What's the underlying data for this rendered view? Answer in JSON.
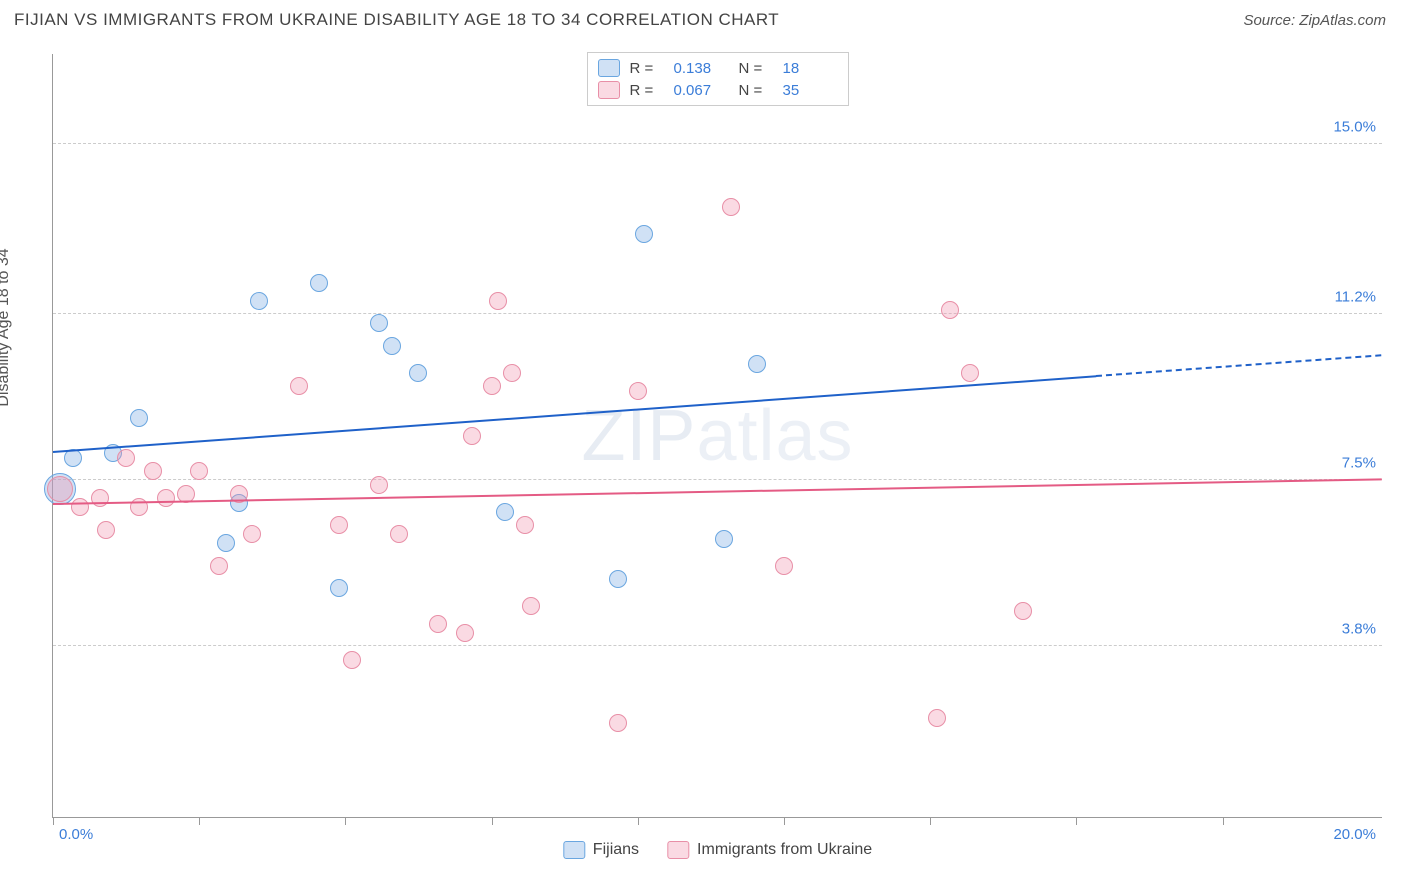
{
  "header": {
    "title": "FIJIAN VS IMMIGRANTS FROM UKRAINE DISABILITY AGE 18 TO 34 CORRELATION CHART",
    "source": "Source: ZipAtlas.com"
  },
  "chart": {
    "type": "scatter",
    "ylabel": "Disability Age 18 to 34",
    "watermark": {
      "bold": "ZIP",
      "thin": "atlas"
    },
    "xlim": [
      0,
      20
    ],
    "ylim": [
      0,
      17
    ],
    "x_ticks_pct": [
      0,
      11,
      22,
      33,
      44,
      55,
      66,
      77,
      88
    ],
    "x_axis_labels": {
      "min": "0.0%",
      "max": "20.0%"
    },
    "y_gridlines": [
      {
        "value": 3.8,
        "label": "3.8%"
      },
      {
        "value": 7.5,
        "label": "7.5%"
      },
      {
        "value": 11.2,
        "label": "11.2%"
      },
      {
        "value": 15.0,
        "label": "15.0%"
      }
    ],
    "series": [
      {
        "name": "Fijians",
        "fill": "rgba(120,170,225,0.35)",
        "stroke": "#6aa6e0",
        "trend_color": "#1f61c9",
        "R": "0.138",
        "N": "18",
        "trend": {
          "x1": 0,
          "y1": 8.15,
          "x2": 20,
          "y2": 10.3,
          "solid_until_x": 15.7
        },
        "points": [
          {
            "x": 0.1,
            "y": 7.3,
            "r": 16
          },
          {
            "x": 0.3,
            "y": 8.0,
            "r": 9
          },
          {
            "x": 0.9,
            "y": 8.1,
            "r": 9
          },
          {
            "x": 1.3,
            "y": 8.9,
            "r": 9
          },
          {
            "x": 2.6,
            "y": 6.1,
            "r": 9
          },
          {
            "x": 2.8,
            "y": 7.0,
            "r": 9
          },
          {
            "x": 3.1,
            "y": 11.5,
            "r": 9
          },
          {
            "x": 4.0,
            "y": 11.9,
            "r": 9
          },
          {
            "x": 4.3,
            "y": 5.1,
            "r": 9
          },
          {
            "x": 4.9,
            "y": 11.0,
            "r": 9
          },
          {
            "x": 5.1,
            "y": 10.5,
            "r": 9
          },
          {
            "x": 5.5,
            "y": 9.9,
            "r": 9
          },
          {
            "x": 6.8,
            "y": 6.8,
            "r": 9
          },
          {
            "x": 8.5,
            "y": 5.3,
            "r": 9
          },
          {
            "x": 8.9,
            "y": 13.0,
            "r": 9
          },
          {
            "x": 10.1,
            "y": 6.2,
            "r": 9
          },
          {
            "x": 10.6,
            "y": 10.1,
            "r": 9
          }
        ]
      },
      {
        "name": "Immigrants from Ukraine",
        "fill": "rgba(240,150,175,0.35)",
        "stroke": "#e88fa7",
        "trend_color": "#e45b84",
        "R": "0.067",
        "N": "35",
        "trend": {
          "x1": 0,
          "y1": 7.0,
          "x2": 20,
          "y2": 7.55,
          "solid_until_x": 20
        },
        "points": [
          {
            "x": 0.1,
            "y": 7.3,
            "r": 13
          },
          {
            "x": 0.4,
            "y": 6.9,
            "r": 9
          },
          {
            "x": 0.7,
            "y": 7.1,
            "r": 9
          },
          {
            "x": 0.8,
            "y": 6.4,
            "r": 9
          },
          {
            "x": 1.1,
            "y": 8.0,
            "r": 9
          },
          {
            "x": 1.3,
            "y": 6.9,
            "r": 9
          },
          {
            "x": 1.5,
            "y": 7.7,
            "r": 9
          },
          {
            "x": 1.7,
            "y": 7.1,
            "r": 9
          },
          {
            "x": 2.0,
            "y": 7.2,
            "r": 9
          },
          {
            "x": 2.2,
            "y": 7.7,
            "r": 9
          },
          {
            "x": 2.5,
            "y": 5.6,
            "r": 9
          },
          {
            "x": 2.8,
            "y": 7.2,
            "r": 9
          },
          {
            "x": 3.0,
            "y": 6.3,
            "r": 9
          },
          {
            "x": 3.7,
            "y": 9.6,
            "r": 9
          },
          {
            "x": 4.3,
            "y": 6.5,
            "r": 9
          },
          {
            "x": 4.5,
            "y": 3.5,
            "r": 9
          },
          {
            "x": 4.9,
            "y": 7.4,
            "r": 9
          },
          {
            "x": 5.2,
            "y": 6.3,
            "r": 9
          },
          {
            "x": 5.8,
            "y": 4.3,
            "r": 9
          },
          {
            "x": 6.2,
            "y": 4.1,
            "r": 9
          },
          {
            "x": 6.3,
            "y": 8.5,
            "r": 9
          },
          {
            "x": 6.6,
            "y": 9.6,
            "r": 9
          },
          {
            "x": 6.7,
            "y": 11.5,
            "r": 9
          },
          {
            "x": 6.9,
            "y": 9.9,
            "r": 9
          },
          {
            "x": 7.1,
            "y": 6.5,
            "r": 9
          },
          {
            "x": 7.2,
            "y": 4.7,
            "r": 9
          },
          {
            "x": 8.5,
            "y": 2.1,
            "r": 9
          },
          {
            "x": 8.8,
            "y": 9.5,
            "r": 9
          },
          {
            "x": 10.2,
            "y": 13.6,
            "r": 9
          },
          {
            "x": 11.0,
            "y": 5.6,
            "r": 9
          },
          {
            "x": 13.3,
            "y": 2.2,
            "r": 9
          },
          {
            "x": 13.5,
            "y": 11.3,
            "r": 9
          },
          {
            "x": 13.8,
            "y": 9.9,
            "r": 9
          },
          {
            "x": 14.6,
            "y": 4.6,
            "r": 9
          }
        ]
      }
    ]
  }
}
